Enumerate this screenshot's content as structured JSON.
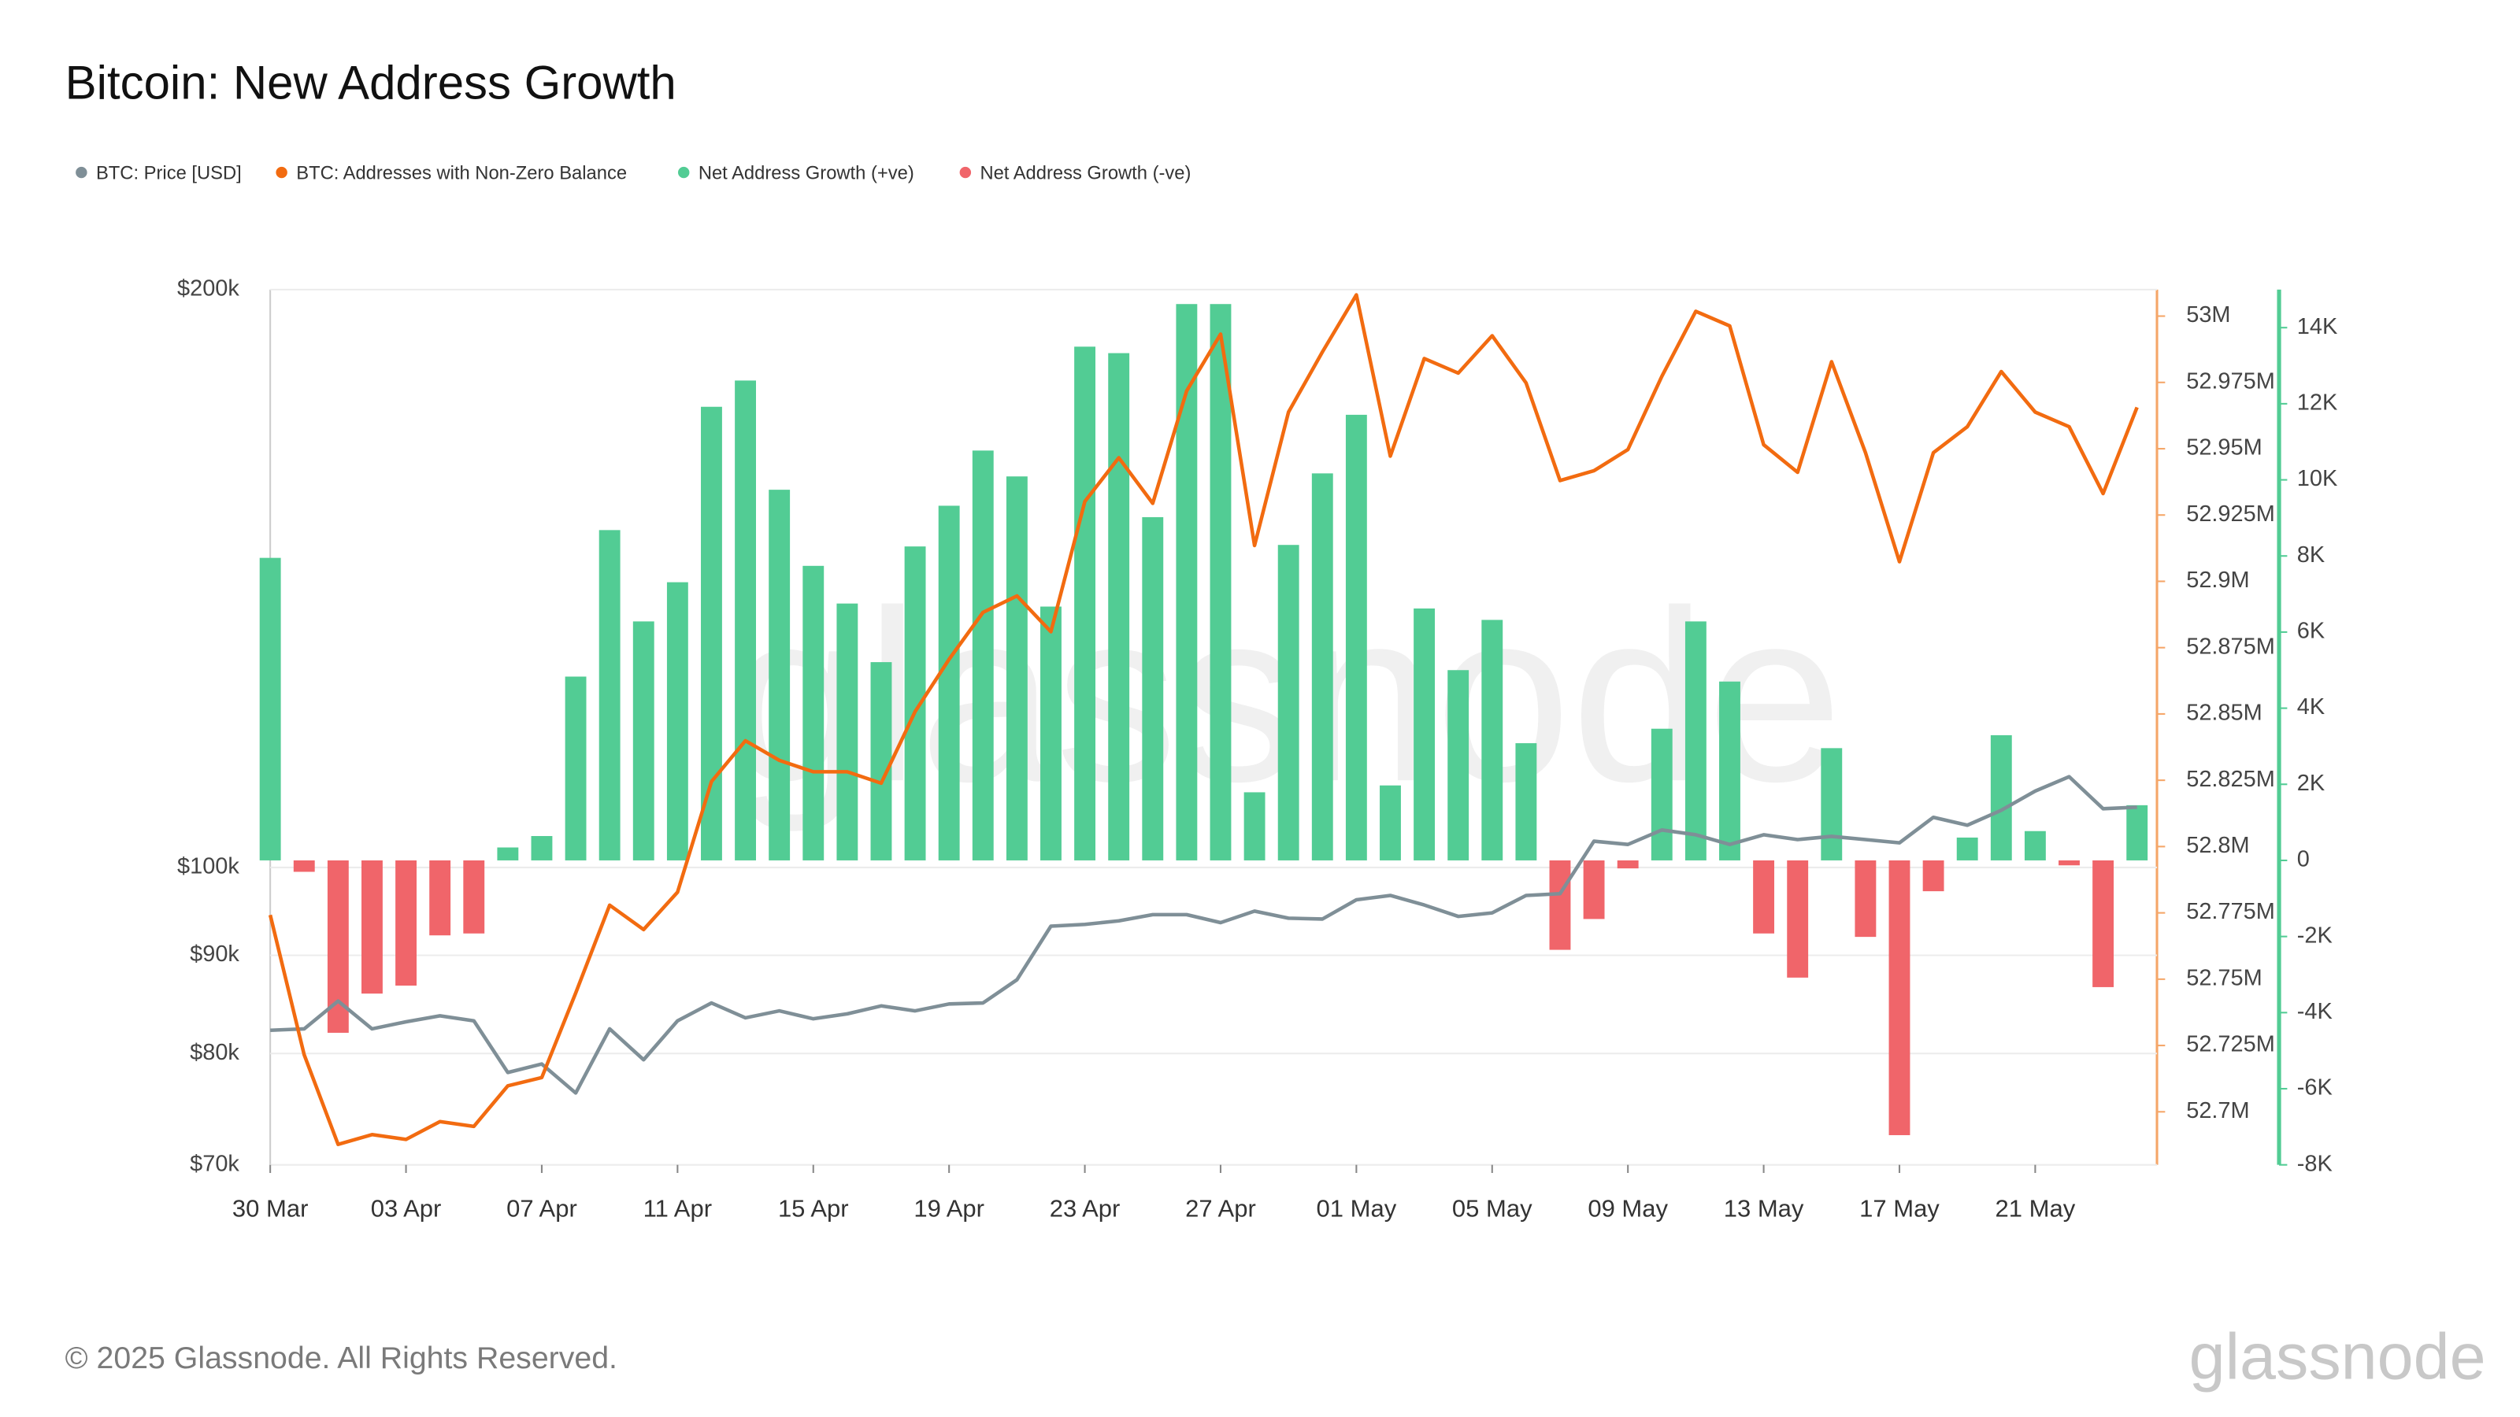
{
  "watermark": "glassnode",
  "footer": "© 2025 Glassnode. All Rights Reserved.",
  "logo": "glassnode",
  "chart_data": {
    "type": "combo",
    "title": "Bitcoin: New Address Growth",
    "categories": [
      "30 Mar",
      null,
      null,
      null,
      "03 Apr",
      null,
      null,
      null,
      "07 Apr",
      null,
      null,
      null,
      "11 Apr",
      null,
      null,
      null,
      "15 Apr",
      null,
      null,
      null,
      "19 Apr",
      null,
      null,
      null,
      "23 Apr",
      null,
      null,
      null,
      "27 Apr",
      null,
      null,
      null,
      "01 May",
      null,
      null,
      null,
      "05 May",
      null,
      null,
      null,
      "09 May",
      null,
      null,
      null,
      "13 May",
      null,
      null,
      null,
      "17 May",
      null,
      null,
      null,
      "21 May",
      null,
      null,
      null
    ],
    "yscale": "log",
    "ylim": [
      70000,
      200000
    ],
    "yticks": [
      {
        "value": 70000,
        "label": "$70k"
      },
      {
        "value": 80000,
        "label": "$80k"
      },
      {
        "value": 90000,
        "label": "$90k"
      },
      {
        "value": 100000,
        "label": "$100k"
      },
      {
        "value": 200000,
        "label": "$200k"
      }
    ],
    "y2lim": [
      52680000,
      53010000
    ],
    "y2ticks": [
      {
        "value": 52700000,
        "label": "52.7M"
      },
      {
        "value": 52725000,
        "label": "52.725M"
      },
      {
        "value": 52750000,
        "label": "52.75M"
      },
      {
        "value": 52775000,
        "label": "52.775M"
      },
      {
        "value": 52800000,
        "label": "52.8M"
      },
      {
        "value": 52825000,
        "label": "52.825M"
      },
      {
        "value": 52850000,
        "label": "52.85M"
      },
      {
        "value": 52875000,
        "label": "52.875M"
      },
      {
        "value": 52900000,
        "label": "52.9M"
      },
      {
        "value": 52925000,
        "label": "52.925M"
      },
      {
        "value": 52950000,
        "label": "52.95M"
      },
      {
        "value": 52975000,
        "label": "52.975M"
      },
      {
        "value": 53000000,
        "label": "53M"
      }
    ],
    "y3lim": [
      -8000,
      15000
    ],
    "y3ticks": [
      {
        "value": -8000,
        "label": "-8K"
      },
      {
        "value": -6000,
        "label": "-6K"
      },
      {
        "value": -4000,
        "label": "-4K"
      },
      {
        "value": -2000,
        "label": "-2K"
      },
      0,
      {
        "value": 2000,
        "label": "2K"
      },
      {
        "value": 4000,
        "label": "4K"
      },
      {
        "value": 6000,
        "label": "6K"
      },
      {
        "value": 8000,
        "label": "8K"
      },
      {
        "value": 10000,
        "label": "10K"
      },
      {
        "value": 12000,
        "label": "12K"
      },
      {
        "value": 14000,
        "label": "14K"
      }
    ],
    "grid": true,
    "series": [
      {
        "name": "BTC: Price [USD]",
        "type": "line",
        "axis": "y",
        "color": "#7f8f97",
        "values": [
          82260,
          82400,
          85200,
          82400,
          83100,
          83700,
          83200,
          78200,
          79000,
          76300,
          82400,
          79400,
          83200,
          85000,
          83500,
          84200,
          83400,
          83900,
          84700,
          84200,
          84900,
          85000,
          87400,
          93200,
          93400,
          93800,
          94500,
          94500,
          93600,
          94900,
          94100,
          94000,
          96200,
          96700,
          95600,
          94300,
          94700,
          96700,
          96900,
          103200,
          102800,
          104600,
          104000,
          102800,
          104000,
          103400,
          103800,
          103400,
          103000,
          106200,
          105200,
          107100,
          109600,
          111500,
          107300,
          107500
        ]
      },
      {
        "name": "BTC: Addresses with Non-Zero Balance",
        "type": "line",
        "axis": "y2",
        "color": "#f26b10",
        "values": [
          52774200,
          52721500,
          52687700,
          52691400,
          52689600,
          52696300,
          52694500,
          52709800,
          52712900,
          52744800,
          52777900,
          52768700,
          52782800,
          52824500,
          52839900,
          52832500,
          52828200,
          52828200,
          52823900,
          52850900,
          52870600,
          52888300,
          52894500,
          52881000,
          52930100,
          52946600,
          52929400,
          52971800,
          52993200,
          52913500,
          52963800,
          52986500,
          53008000,
          52947200,
          52984000,
          52978500,
          52992600,
          52974800,
          52938000,
          52941700,
          52949700,
          52977300,
          53001800,
          52996300,
          52951500,
          52941100,
          52982800,
          52948500,
          52907400,
          52948500,
          52958300,
          52979100,
          52963800,
          52958300,
          52933100,
          52965600
        ]
      },
      {
        "name": "Net Address Growth (+ve)",
        "type": "bar",
        "axis": "y3",
        "color": "#52cc94",
        "values": [
          7950,
          null,
          null,
          null,
          null,
          null,
          null,
          340,
          640,
          4830,
          8680,
          6280,
          7310,
          11920,
          12610,
          9740,
          7740,
          6750,
          5210,
          8250,
          9320,
          10770,
          10090,
          6670,
          13500,
          13330,
          9020,
          14620,
          14620,
          1790,
          8290,
          10170,
          11710,
          1970,
          6620,
          5000,
          6320,
          3080,
          null,
          null,
          null,
          3460,
          6280,
          4700,
          null,
          null,
          2950,
          null,
          null,
          null,
          600,
          3290,
          770,
          null,
          null,
          1450
        ]
      },
      {
        "name": "Net Address Growth (-ve)",
        "type": "bar",
        "axis": "y3",
        "color": "#f0656a",
        "values": [
          null,
          -300,
          -4530,
          -3500,
          -3290,
          -1970,
          -1920,
          null,
          null,
          null,
          null,
          null,
          null,
          null,
          null,
          null,
          null,
          null,
          null,
          null,
          null,
          null,
          null,
          null,
          null,
          null,
          null,
          null,
          null,
          null,
          null,
          null,
          null,
          null,
          null,
          null,
          null,
          null,
          -2350,
          -1540,
          -210,
          null,
          null,
          null,
          -1920,
          -3080,
          null,
          -2010,
          -7220,
          -810,
          null,
          null,
          null,
          -130,
          -3330,
          null
        ]
      }
    ]
  }
}
